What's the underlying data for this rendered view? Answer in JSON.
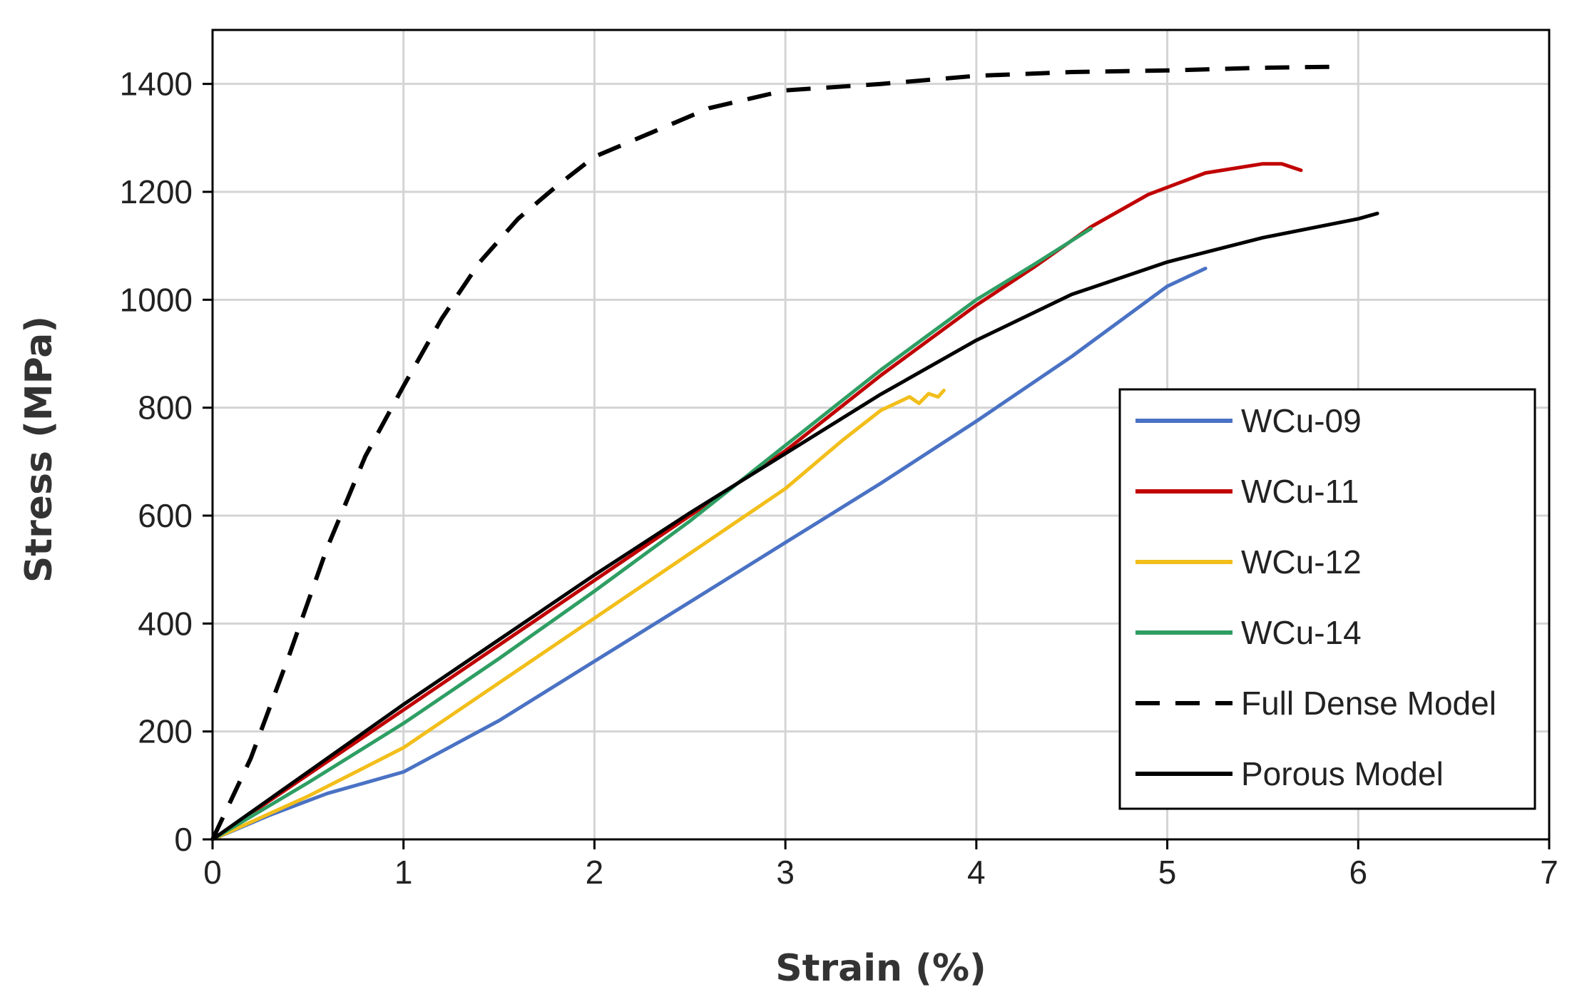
{
  "chart_data": {
    "type": "line",
    "title": "",
    "xlabel": "Strain (%)",
    "ylabel": "Stress (MPa)",
    "xlim": [
      0,
      7
    ],
    "ylim": [
      0,
      1500
    ],
    "xticks": [
      0,
      1,
      2,
      3,
      4,
      5,
      6,
      7
    ],
    "yticks": [
      0,
      200,
      400,
      600,
      800,
      1000,
      1200,
      1400
    ],
    "grid": true,
    "legend_position": "bottom-right",
    "series": [
      {
        "name": "WCu-09",
        "color": "#4a72c4",
        "dash": "solid",
        "x": [
          0,
          0.3,
          0.6,
          1.0,
          1.5,
          2.0,
          2.5,
          3.0,
          3.5,
          4.0,
          4.5,
          5.0,
          5.2
        ],
        "y": [
          0,
          45,
          85,
          125,
          220,
          330,
          440,
          550,
          660,
          775,
          895,
          1025,
          1058
        ]
      },
      {
        "name": "WCu-11",
        "color": "#c00000",
        "dash": "solid",
        "x": [
          0,
          0.5,
          1.0,
          1.5,
          2.0,
          2.5,
          3.0,
          3.5,
          4.0,
          4.3,
          4.6,
          4.9,
          5.2,
          5.5,
          5.6,
          5.7
        ],
        "y": [
          0,
          120,
          240,
          360,
          480,
          600,
          720,
          860,
          990,
          1060,
          1135,
          1195,
          1235,
          1252,
          1252,
          1240
        ]
      },
      {
        "name": "WCu-12",
        "color": "#f2be1a",
        "dash": "solid",
        "x": [
          0,
          0.5,
          1.0,
          1.5,
          2.0,
          2.5,
          3.0,
          3.3,
          3.5,
          3.65,
          3.7,
          3.75,
          3.8,
          3.83
        ],
        "y": [
          0,
          80,
          170,
          290,
          410,
          530,
          650,
          740,
          795,
          820,
          808,
          826,
          820,
          832
        ]
      },
      {
        "name": "WCu-14",
        "color": "#2e9e63",
        "dash": "solid",
        "x": [
          0,
          0.5,
          1.0,
          1.5,
          2.0,
          2.5,
          3.0,
          3.5,
          4.0,
          4.3,
          4.6
        ],
        "y": [
          0,
          105,
          215,
          335,
          460,
          590,
          730,
          870,
          1000,
          1065,
          1132
        ]
      },
      {
        "name": "Full Dense Model",
        "color": "#000000",
        "dash": "dashed",
        "x": [
          0,
          0.2,
          0.4,
          0.6,
          0.8,
          1.0,
          1.2,
          1.4,
          1.6,
          1.8,
          2.0,
          2.3,
          2.6,
          3.0,
          3.5,
          4.0,
          4.5,
          5.0,
          5.5,
          5.9
        ],
        "y": [
          0,
          150,
          340,
          540,
          710,
          840,
          965,
          1070,
          1150,
          1210,
          1265,
          1310,
          1355,
          1388,
          1400,
          1415,
          1422,
          1425,
          1430,
          1432
        ]
      },
      {
        "name": "Porous Model",
        "color": "#000000",
        "dash": "solid",
        "x": [
          0,
          0.5,
          1.0,
          1.5,
          2.0,
          2.5,
          3.0,
          3.5,
          4.0,
          4.5,
          5.0,
          5.5,
          6.0,
          6.1
        ],
        "y": [
          0,
          125,
          250,
          370,
          490,
          605,
          715,
          825,
          925,
          1010,
          1070,
          1115,
          1150,
          1160
        ]
      }
    ]
  }
}
